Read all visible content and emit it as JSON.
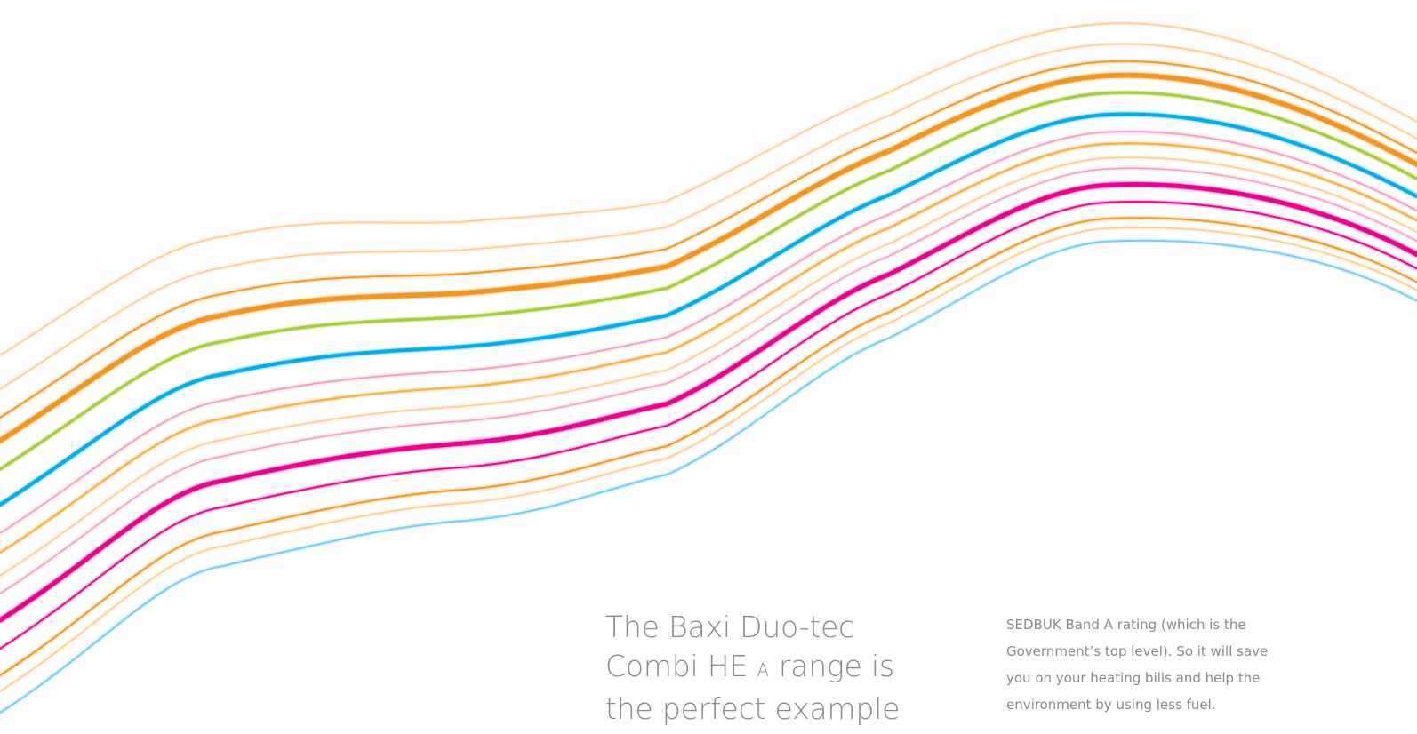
{
  "headline": {
    "line1": "The Baxi Duo-tec",
    "line2_start": "Combi HE ",
    "line2_smallcap": "A",
    "line2_end": " range is",
    "line3": "the perfect example"
  },
  "body_copy": {
    "line1": "SEDBUK Band A rating (which is the",
    "line2": "Government’s top level). So it will save",
    "line3": "you on your heating bills and help the",
    "line4": "environment by using less fuel."
  },
  "waves": {
    "colors": {
      "light_orange": "#fdc985",
      "orange": "#f7941d",
      "lime": "#a6ce39",
      "blue": "#00aeef",
      "pink": "#f49ac1",
      "amber": "#fbb040",
      "magenta": "#ec008c",
      "sky": "#6dcff6"
    }
  }
}
